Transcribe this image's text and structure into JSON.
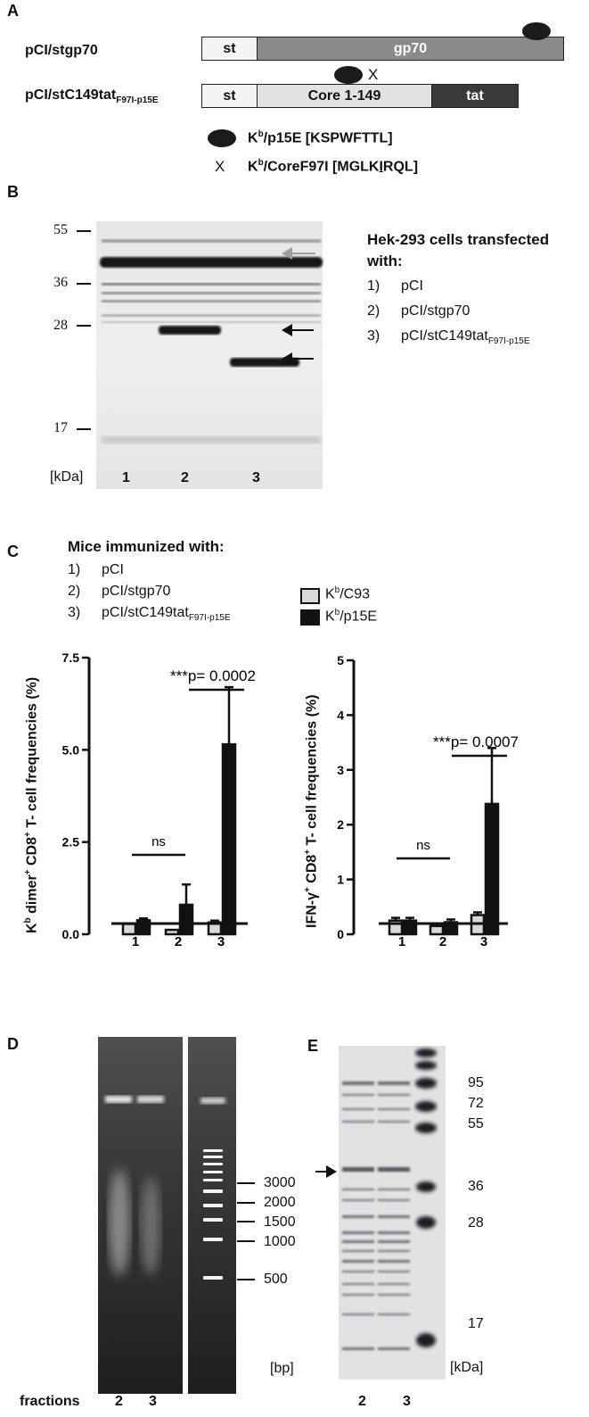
{
  "panelA": {
    "letter": "A",
    "construct1": {
      "name": "pCI/stgp70",
      "seg_st": "st",
      "seg_main": "gp70"
    },
    "construct2": {
      "name_main": "pCI/stC149tat",
      "name_sub": "F97I-p15E",
      "seg_st": "st",
      "seg_core": "Core 1-149",
      "seg_tat": "tat"
    },
    "x_marker": "X",
    "legend": {
      "oval_main": "K",
      "oval_sup": "b",
      "oval_rest": "/p15E [KSPWFTTL]",
      "x_symbol": "X",
      "x_main": "K",
      "x_sup": "b",
      "x_rest_1": "/CoreF97I  [MGLK",
      "x_rest_u": "I",
      "x_rest_2": "RQL]"
    }
  },
  "panelB": {
    "letter": "B",
    "mw_labels": [
      "55",
      "36",
      "28",
      "17"
    ],
    "unit": "[kDa]",
    "lanes": [
      "1",
      "2",
      "3"
    ],
    "legend_title": "Hek-293 cells transfected with:",
    "legend_items": [
      {
        "n": "1)",
        "label": "pCI",
        "sub": ""
      },
      {
        "n": "2)",
        "label": "pCI/stgp70",
        "sub": ""
      },
      {
        "n": "3)",
        "label": "pCI/stC149tat",
        "sub": "F97I-p15E"
      }
    ]
  },
  "panelC": {
    "letter": "C",
    "legend_title": "Mice immunized with:",
    "groups": [
      {
        "n": "1)",
        "label": "pCI",
        "sub": ""
      },
      {
        "n": "2)",
        "label": "pCI/stgp70",
        "sub": ""
      },
      {
        "n": "3)",
        "label": "pCI/stC149tat",
        "sub": "F97I-p15E"
      }
    ],
    "series_legend": [
      {
        "main": "K",
        "sup": "b",
        "rest": "/C93",
        "color": "#d9d9d9"
      },
      {
        "main": "K",
        "sup": "b",
        "rest": "/p15E",
        "color": "#111111"
      }
    ],
    "left_ylabel": {
      "main1": "K",
      "sup1": "b",
      "mid": " dimer",
      "sup2": "+",
      "mid2": " CD8",
      "sup3": "+",
      "end": " T- cell frequencies (%)"
    },
    "right_ylabel": {
      "main1": "IFN-γ",
      "sup1": "+",
      "mid": " CD8",
      "sup2": "+",
      "end": " T- cell frequencies (%)"
    },
    "left_sig": "***p= 0.0002",
    "right_sig": "***p= 0.0007",
    "ns_label": "ns"
  },
  "chart_data": [
    {
      "type": "bar",
      "categories": [
        "1",
        "2",
        "3"
      ],
      "series": [
        {
          "name": "Kb/C93",
          "values": [
            0.28,
            0.12,
            0.32
          ],
          "errors": [
            0.0,
            0.0,
            0.05
          ],
          "color": "#d9d9d9"
        },
        {
          "name": "Kb/p15E",
          "values": [
            0.38,
            0.8,
            5.15
          ],
          "errors": [
            0.05,
            0.55,
            1.55
          ],
          "color": "#111111"
        }
      ],
      "ylabel": "Kb dimer+ CD8+ T- cell frequencies (%)",
      "ylim": [
        0,
        7.5
      ],
      "yticks": [
        "0.0",
        "2.5",
        "5.0",
        "7.5"
      ],
      "annotations": [
        "***p= 0.0002",
        "ns"
      ]
    },
    {
      "type": "bar",
      "categories": [
        "1",
        "2",
        "3"
      ],
      "series": [
        {
          "name": "Kb/C93",
          "values": [
            0.25,
            0.15,
            0.35
          ],
          "errors": [
            0.05,
            0.03,
            0.05
          ],
          "color": "#d9d9d9"
        },
        {
          "name": "Kb/p15E",
          "values": [
            0.25,
            0.22,
            2.38
          ],
          "errors": [
            0.05,
            0.05,
            1.02
          ],
          "color": "#111111"
        }
      ],
      "ylabel": "IFN-γ+ CD8+ T- cell frequencies (%)",
      "ylim": [
        0,
        5
      ],
      "yticks": [
        "0",
        "1",
        "2",
        "3",
        "4",
        "5"
      ],
      "annotations": [
        "***p= 0.0007",
        "ns"
      ]
    }
  ],
  "panelD": {
    "letter": "D",
    "bp_labels": [
      "3000",
      "2000",
      "1500",
      "1000",
      "500"
    ],
    "unit": "[bp]",
    "fractions_label": "fractions",
    "lanes": [
      "2",
      "3"
    ]
  },
  "panelE": {
    "letter": "E",
    "mw_labels": [
      "95",
      "72",
      "55",
      "36",
      "28",
      "17"
    ],
    "unit": "[kDa]",
    "lanes": [
      "2",
      "3"
    ]
  }
}
